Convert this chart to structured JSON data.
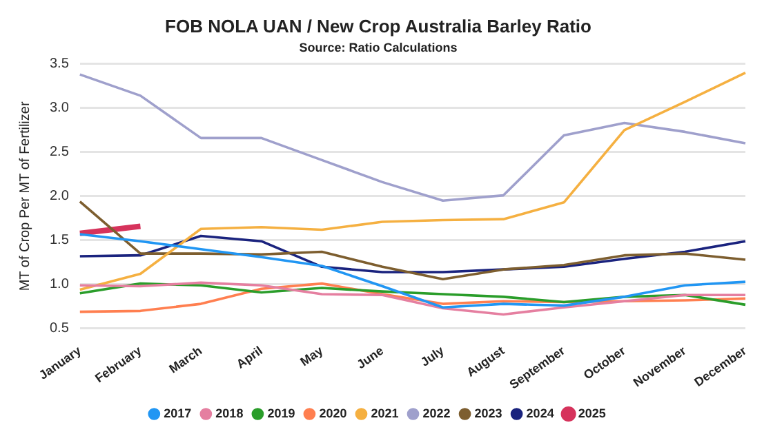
{
  "chart_data": {
    "type": "line",
    "title": "FOB NOLA UAN / New Crop Australia Barley Ratio",
    "subtitle": "Source: Ratio Calculations",
    "ylabel": "MT of Crop Per MT of Fertilizer",
    "categories": [
      "January",
      "February",
      "March",
      "April",
      "May",
      "June",
      "July",
      "August",
      "September",
      "October",
      "November",
      "December"
    ],
    "ylim": [
      0.5,
      3.5
    ],
    "yticks": [
      0.5,
      {
        "value": 1,
        "label": "1.0"
      },
      1.5,
      {
        "value": 2,
        "label": "2.0"
      },
      2.5,
      {
        "value": 3,
        "label": "3.0"
      },
      3.5
    ],
    "grid": "y",
    "legend": "bottom",
    "marker": "none",
    "line_style": "solid",
    "series": [
      {
        "name": "2017",
        "color": "#2196f3",
        "values": [
          1.57,
          1.49,
          1.4,
          1.31,
          1.21,
          0.98,
          0.74,
          0.78,
          0.76,
          0.86,
          0.99,
          1.03
        ]
      },
      {
        "name": "2018",
        "color": "#e57fa0",
        "values": [
          0.99,
          0.98,
          1.02,
          0.99,
          0.89,
          0.88,
          0.73,
          0.66,
          0.74,
          0.81,
          0.88,
          0.88
        ]
      },
      {
        "name": "2019",
        "color": "#2a9d2a",
        "values": [
          0.9,
          1.01,
          0.99,
          0.91,
          0.96,
          0.92,
          0.89,
          0.86,
          0.8,
          0.86,
          0.88,
          0.77
        ]
      },
      {
        "name": "2020",
        "color": "#ff7f50",
        "values": [
          0.69,
          0.7,
          0.78,
          0.95,
          1.01,
          0.89,
          0.78,
          0.81,
          0.8,
          0.81,
          0.82,
          0.84
        ]
      },
      {
        "name": "2021",
        "color": "#f5b041",
        "values": [
          0.94,
          1.12,
          1.63,
          1.65,
          1.62,
          1.71,
          1.73,
          1.74,
          1.93,
          2.75,
          3.07,
          3.4
        ]
      },
      {
        "name": "2022",
        "color": "#9fa0cc",
        "values": [
          3.38,
          3.14,
          2.66,
          2.66,
          2.41,
          2.16,
          1.95,
          2.01,
          2.69,
          2.83,
          2.73,
          2.6
        ]
      },
      {
        "name": "2023",
        "color": "#7d5e2f",
        "values": [
          1.94,
          1.35,
          1.35,
          1.34,
          1.37,
          1.2,
          1.06,
          1.17,
          1.22,
          1.33,
          1.35,
          1.28
        ]
      },
      {
        "name": "2024",
        "color": "#1a237e",
        "values": [
          1.32,
          1.33,
          1.55,
          1.49,
          1.2,
          1.14,
          1.14,
          1.17,
          1.2,
          1.29,
          1.37,
          1.49
        ]
      },
      {
        "name": "2025",
        "color": "#d6335c",
        "values": [
          1.58,
          1.66,
          null,
          null,
          null,
          null,
          null,
          null,
          null,
          null,
          null,
          null
        ]
      }
    ]
  }
}
